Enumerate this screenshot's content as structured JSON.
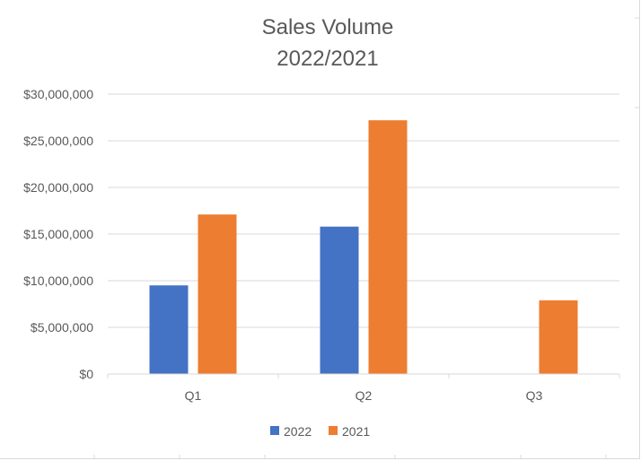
{
  "chart_data": {
    "type": "bar",
    "title": [
      "Sales Volume",
      "2022/2021"
    ],
    "categories": [
      "Q1",
      "Q2",
      "Q3"
    ],
    "series": [
      {
        "name": "2022",
        "color": "#4472C4",
        "values": [
          9500000,
          15800000,
          null
        ]
      },
      {
        "name": "2021",
        "color": "#ED7D31",
        "values": [
          17100000,
          27200000,
          7900000
        ]
      }
    ],
    "y_ticks": [
      "$0",
      "$5,000,000",
      "$10,000,000",
      "$15,000,000",
      "$20,000,000",
      "$25,000,000",
      "$30,000,000"
    ],
    "ylim": [
      0,
      30000000
    ],
    "grid": true,
    "legend_position": "bottom",
    "gridline_color": "#d9d9d9",
    "text_color": "#595959"
  }
}
